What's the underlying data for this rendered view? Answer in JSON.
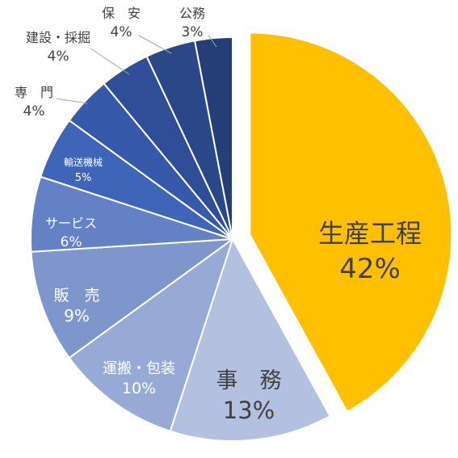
{
  "chart_data": {
    "type": "pie",
    "title": "",
    "start_angle_deg": 0,
    "direction": "clockwise",
    "slices": [
      {
        "label": "生産工程",
        "value": 42,
        "value_label": "42%",
        "color": "#FFC000",
        "exploded": true,
        "label_color": "#404040"
      },
      {
        "label": "事　務",
        "value": 13,
        "value_label": "13%",
        "color": "#B4C0E0",
        "exploded": false,
        "label_color": "#404040"
      },
      {
        "label": "運搬・包装",
        "value": 10,
        "value_label": "10%",
        "color": "#97AAD6",
        "exploded": false,
        "label_color": "#ffffff"
      },
      {
        "label": "販　売",
        "value": 9,
        "value_label": "9%",
        "color": "#7F96CD",
        "exploded": false,
        "label_color": "#ffffff"
      },
      {
        "label": "サービス",
        "value": 6,
        "value_label": "6%",
        "color": "#6581C6",
        "exploded": false,
        "label_color": "#ffffff"
      },
      {
        "label": "輸送機械",
        "value": 5,
        "value_label": "5%",
        "color": "#3F65B8",
        "exploded": false,
        "label_color": "#ffffff"
      },
      {
        "label": "専　門",
        "value": 4,
        "value_label": "4%",
        "color": "#3659AA",
        "exploded": false,
        "label_color": "#404040"
      },
      {
        "label": "建設・採掘",
        "value": 4,
        "value_label": "4%",
        "color": "#2F4E97",
        "exploded": false,
        "label_color": "#404040"
      },
      {
        "label": "保　安",
        "value": 4,
        "value_label": "4%",
        "color": "#2A4787",
        "exploded": false,
        "label_color": "#404040"
      },
      {
        "label": "公務",
        "value": 3,
        "value_label": "3%",
        "color": "#253E78",
        "exploded": false,
        "label_color": "#404040"
      }
    ],
    "legend": "none"
  }
}
